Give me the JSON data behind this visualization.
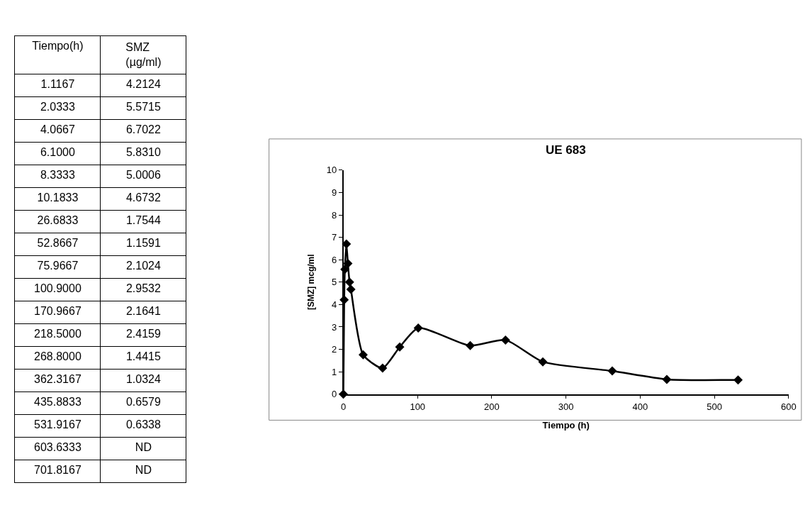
{
  "chart_data": [
    {
      "type": "other",
      "xlabel": "Tiempo(h)",
      "ylabel": "SMZ\n(µg/ml)",
      "categories": [
        "1.1167",
        "2.0333",
        "4.0667",
        "6.1000",
        "8.3333",
        "10.1833",
        "26.6833",
        "52.8667",
        "75.9667",
        "100.9000",
        "170.9667",
        "218.5000",
        "268.8000",
        "362.3167",
        "435.8833",
        "531.9167",
        "603.6333",
        "701.8167"
      ],
      "value_labels": [
        "4.2124",
        "5.5715",
        "6.7022",
        "5.8310",
        "5.0006",
        "4.6732",
        "1.7544",
        "1.1591",
        "2.1024",
        "2.9532",
        "2.1641",
        "2.4159",
        "1.4415",
        "1.0324",
        "0.6579",
        "0.6338",
        "ND",
        "ND"
      ]
    },
    {
      "type": "line",
      "title": "UE 683",
      "xlabel": "Tiempo (h)",
      "ylabel": "[SMZ] mcg/ml",
      "x": [
        0,
        1.1167,
        2.0333,
        4.0667,
        6.1,
        8.3333,
        10.1833,
        26.6833,
        52.8667,
        75.9667,
        100.9,
        170.9667,
        218.5,
        268.8,
        362.3167,
        435.8833,
        531.9167
      ],
      "series": [
        {
          "color": "#000000",
          "values": [
            0,
            4.2124,
            5.5715,
            6.7022,
            5.831,
            5.0006,
            4.6732,
            1.7544,
            1.1591,
            2.1024,
            2.9532,
            2.1641,
            2.4159,
            1.4415,
            1.0324,
            0.6579,
            0.6338
          ]
        }
      ],
      "xlim": [
        0,
        600
      ],
      "xticks": [
        0,
        100,
        200,
        300,
        400,
        500,
        600
      ],
      "ylim": [
        0,
        10
      ],
      "yticks": [
        0,
        1,
        2,
        3,
        4,
        5,
        6,
        7,
        8,
        9,
        10
      ],
      "marker": "diamond",
      "line_style": "solid"
    }
  ]
}
